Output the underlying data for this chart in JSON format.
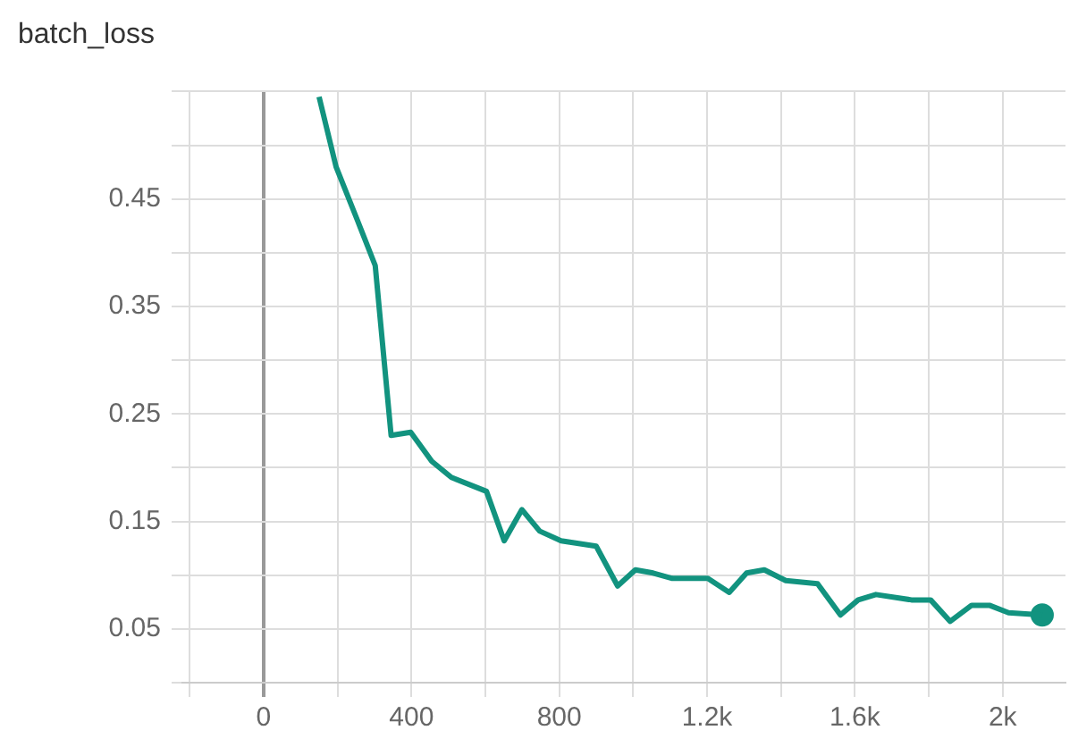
{
  "chart_data": {
    "type": "line",
    "title": "batch_loss",
    "x": [
      150,
      196,
      254,
      302,
      345,
      398,
      455,
      508,
      603,
      651,
      699,
      747,
      805,
      900,
      958,
      1006,
      1054,
      1106,
      1202,
      1260,
      1307,
      1355,
      1413,
      1499,
      1561,
      1609,
      1657,
      1753,
      1805,
      1858,
      1916,
      1964,
      2016,
      2107
    ],
    "series": [
      {
        "color": "#12937f",
        "values": [
          0.545,
          0.48,
          0.43,
          0.388,
          0.23,
          0.233,
          0.206,
          0.191,
          0.178,
          0.132,
          0.161,
          0.141,
          0.132,
          0.127,
          0.09,
          0.105,
          0.102,
          0.097,
          0.097,
          0.084,
          0.102,
          0.105,
          0.095,
          0.092,
          0.063,
          0.077,
          0.082,
          0.077,
          0.077,
          0.057,
          0.072,
          0.072,
          0.065,
          0.063
        ]
      },
      {
        "type": "scatter",
        "color": "#12937f",
        "marker": "circle",
        "x": [
          2107
        ],
        "values": [
          0.063
        ]
      }
    ],
    "xlim": [
      -220,
      2170
    ],
    "xticks": [
      {
        "value": -200,
        "label": null
      },
      0,
      {
        "value": 200,
        "label": null
      },
      400,
      {
        "value": 600,
        "label": null
      },
      800,
      {
        "value": 1000,
        "label": null
      },
      {
        "value": 1200,
        "label": "1.2k"
      },
      {
        "value": 1400,
        "label": null
      },
      {
        "value": 1600,
        "label": "1.6k"
      },
      {
        "value": 1800,
        "label": null
      },
      {
        "value": 2000,
        "label": "2k"
      }
    ],
    "ylim": [
      0,
      0.55
    ],
    "yticks": [
      {
        "value": 0,
        "label": null
      },
      0.05,
      {
        "value": 0.1,
        "label": null
      },
      0.15,
      {
        "value": 0.2,
        "label": null
      },
      0.25,
      {
        "value": 0.3,
        "label": null
      },
      0.35,
      {
        "value": 0.4,
        "label": null
      },
      0.45,
      {
        "value": 0.5,
        "label": null
      },
      {
        "value": 0.55,
        "label": null
      }
    ],
    "grid": true,
    "legend": false,
    "line_style": "solid"
  }
}
